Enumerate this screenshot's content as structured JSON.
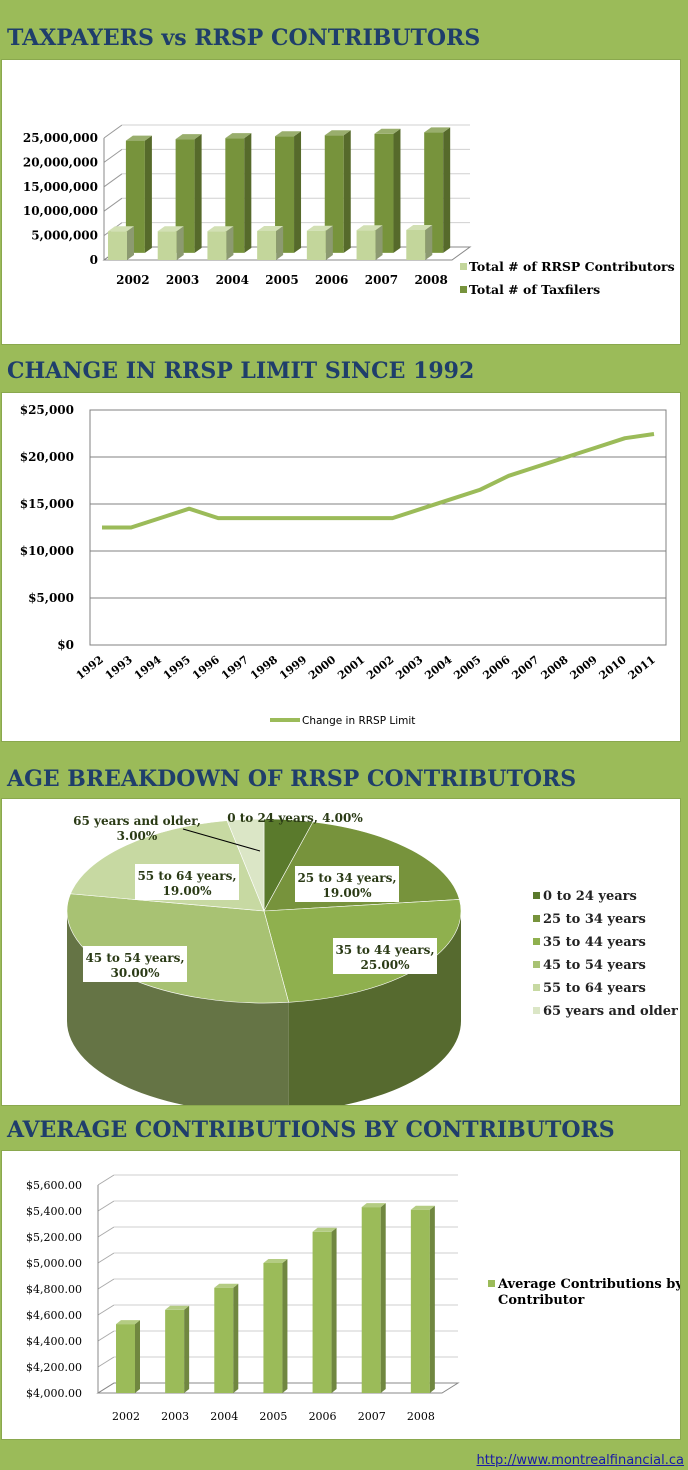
{
  "sections": [
    {
      "title": "TAXPAYERS vs RRSP CONTRIBUTORS"
    },
    {
      "title": "CHANGE IN RRSP LIMIT SINCE 1992"
    },
    {
      "title": "AGE BREAKDOWN OF RRSP CONTRIBUTORS"
    },
    {
      "title": "AVERAGE CONTRIBUTIONS BY CONTRIBUTORS"
    }
  ],
  "footer": {
    "url": "http://www.montrealfinancial.ca"
  },
  "colors": {
    "background": "#9bbb59",
    "title_text": "#1f3e6b",
    "bar_light": "#c3d69b",
    "bar_dark": "#77933c",
    "line": "#9bbb59"
  },
  "chart_data": [
    {
      "type": "bar",
      "categories": [
        "2002",
        "2003",
        "2004",
        "2005",
        "2006",
        "2007",
        "2008"
      ],
      "series": [
        {
          "name": "Total # of RRSP Contributors",
          "values": [
            5900000,
            5900000,
            5900000,
            5950000,
            6000000,
            6100000,
            6150000
          ]
        },
        {
          "name": "Total # of Taxfilers",
          "values": [
            23000000,
            23300000,
            23500000,
            23900000,
            24100000,
            24400000,
            24700000
          ]
        }
      ],
      "ylim": [
        0,
        25000000
      ],
      "yticks": [
        "25,000,000",
        "20,000,000",
        "15,000,000",
        "10,000,000",
        "5,000,000",
        "0"
      ],
      "legend_position": "right"
    },
    {
      "type": "line",
      "categories": [
        "1992",
        "1993",
        "1994",
        "1995",
        "1996",
        "1997",
        "1998",
        "1999",
        "2000",
        "2001",
        "2002",
        "2003",
        "2004",
        "2005",
        "2006",
        "2007",
        "2008",
        "2009",
        "2010",
        "2011"
      ],
      "series": [
        {
          "name": "Change in  RRSP Limit",
          "values": [
            12500,
            12500,
            13500,
            14500,
            13500,
            13500,
            13500,
            13500,
            13500,
            13500,
            13500,
            14500,
            15500,
            16500,
            18000,
            19000,
            20000,
            21000,
            22000,
            22450
          ]
        }
      ],
      "ylim": [
        0,
        25000
      ],
      "yticks": [
        "$25,000",
        "$20,000",
        "$15,000",
        "$10,000",
        "$5,000",
        "$0"
      ],
      "grid": true,
      "legend_position": "bottom"
    },
    {
      "type": "pie",
      "slices": [
        {
          "label": "0 to 24 years",
          "value": 4.0,
          "data_label": "0 to 24 years, 4.00%"
        },
        {
          "label": "25 to 34 years",
          "value": 19.0,
          "data_label": "25 to 34 years, 19.00%"
        },
        {
          "label": "35 to 44 years",
          "value": 25.0,
          "data_label": "35 to 44 years, 25.00%"
        },
        {
          "label": "45 to 54 years",
          "value": 30.0,
          "data_label": "45 to 54 years, 30.00%"
        },
        {
          "label": "55 to 64 years",
          "value": 19.0,
          "data_label": "55 to 64 years, 19.00%"
        },
        {
          "label": "65 years and older",
          "value": 3.0,
          "data_label": "65 years and older, 3.00%"
        }
      ],
      "legend_position": "right"
    },
    {
      "type": "bar",
      "categories": [
        "2002",
        "2003",
        "2004",
        "2005",
        "2006",
        "2007",
        "2008"
      ],
      "series": [
        {
          "name": "Average Contributions  by Contributor",
          "values": [
            4530,
            4640,
            4810,
            5000,
            5240,
            5430,
            5410
          ]
        }
      ],
      "ylim": [
        4000,
        5600
      ],
      "yticks": [
        "$5,600.00",
        "$5,400.00",
        "$5,200.00",
        "$5,000.00",
        "$4,800.00",
        "$4,600.00",
        "$4,400.00",
        "$4,200.00",
        "$4,000.00"
      ],
      "legend_position": "right"
    }
  ]
}
